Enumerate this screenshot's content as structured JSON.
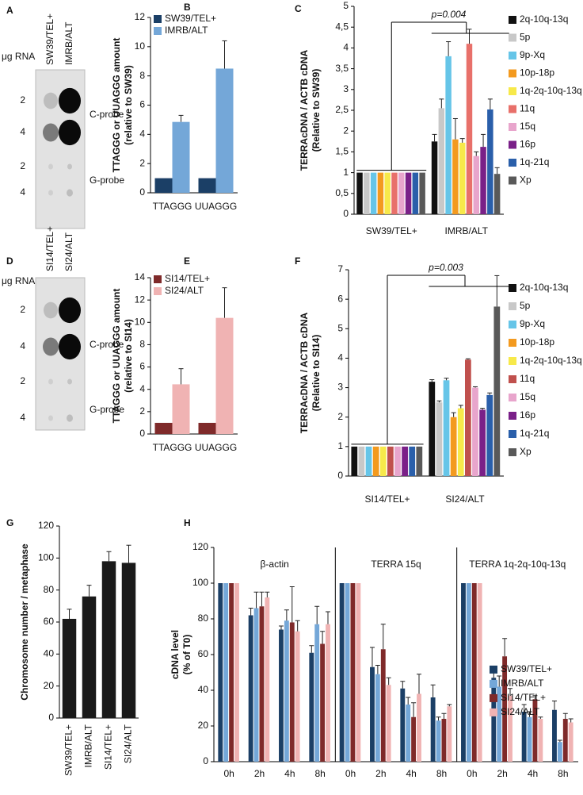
{
  "chart_data": [
    {
      "type": "blot",
      "label": "A",
      "lanes": [
        "SW39/TEL+",
        "IMRB/ALT"
      ],
      "amount_label": "μg RNA",
      "amounts": [
        2,
        4,
        2,
        4
      ],
      "probes": [
        "C-probe",
        "G-probe"
      ]
    },
    {
      "type": "bar",
      "label": "B",
      "ylabel": [
        "TTAGGG or UUAGGG amount",
        "(relative to SW39)"
      ],
      "categories": [
        "TTAGGG",
        "UUAGGG"
      ],
      "series": [
        {
          "name": "SW39/TEL+",
          "color": "#1b3f66",
          "values": [
            1,
            1
          ]
        },
        {
          "name": "IMRB/ALT",
          "color": "#74a7d8",
          "values": [
            4.85,
            8.5
          ],
          "errors": [
            0.45,
            1.9
          ]
        }
      ],
      "ylim": [
        0,
        12
      ],
      "yticks": [
        0,
        2,
        4,
        6,
        8,
        10,
        12
      ],
      "legend": "upper left"
    },
    {
      "type": "bar",
      "label": "C",
      "ylabel": [
        "TERRAcDNA / ACTB cDNA",
        "(Relative to SW39)"
      ],
      "categories": [
        "SW39/TEL+",
        "IMRB/ALT"
      ],
      "series": [
        {
          "name": "2q-10q-13q",
          "color": "#111111",
          "values": [
            1,
            1.75
          ],
          "errors": [
            null,
            0.17
          ]
        },
        {
          "name": "5p",
          "color": "#c8c8c8",
          "values": [
            1,
            2.55
          ],
          "errors": [
            null,
            0.22
          ]
        },
        {
          "name": "9p-Xq",
          "color": "#66c5e8",
          "values": [
            1,
            3.8
          ],
          "errors": [
            null,
            0.35
          ]
        },
        {
          "name": "10p-18p",
          "color": "#f39a1f",
          "values": [
            1,
            1.8
          ],
          "errors": [
            null,
            0.5
          ]
        },
        {
          "name": "1q-2q-10q-13q",
          "color": "#f7e94a",
          "values": [
            1,
            1.72
          ],
          "errors": [
            null,
            0.1
          ]
        },
        {
          "name": "11q",
          "color": "#e8706a",
          "values": [
            1,
            4.1
          ],
          "errors": [
            null,
            0.35
          ]
        },
        {
          "name": "15q",
          "color": "#e8a5cc",
          "values": [
            1,
            1.4
          ],
          "errors": [
            null,
            0.1
          ]
        },
        {
          "name": "16p",
          "color": "#7a2088",
          "values": [
            1,
            1.62
          ],
          "errors": [
            null,
            0.3
          ]
        },
        {
          "name": "1q-21q",
          "color": "#2a5faa",
          "values": [
            1,
            2.52
          ],
          "errors": [
            null,
            0.25
          ]
        },
        {
          "name": "Xp",
          "color": "#595959",
          "values": [
            1,
            0.97
          ],
          "errors": [
            null,
            0.15
          ]
        }
      ],
      "ylim": [
        0,
        5
      ],
      "yticks": [
        0,
        {
          "value": 0.5,
          "label": "0,5"
        },
        1,
        {
          "value": 1.5,
          "label": "1,5"
        },
        2,
        {
          "value": 2.5,
          "label": "2,5"
        },
        3,
        {
          "value": 3.5,
          "label": "3,5"
        },
        4,
        {
          "value": 4.5,
          "label": "4,5"
        },
        5
      ],
      "annotation": "p=0.004",
      "legend": "right"
    },
    {
      "type": "blot",
      "label": "D",
      "lanes": [
        "SI14/TEL+",
        "SI24/ALT"
      ],
      "amount_label": "μg RNA",
      "amounts": [
        2,
        4,
        2,
        4
      ],
      "probes": [
        "C-probe",
        "G-probe"
      ]
    },
    {
      "type": "bar",
      "label": "E",
      "ylabel": [
        "TTAGGG or UUAGGG amount",
        "(relative to SI14)"
      ],
      "categories": [
        "TTAGGG",
        "UUAGGG"
      ],
      "series": [
        {
          "name": "SI14/TEL+",
          "color": "#7f2a2a",
          "values": [
            1,
            1
          ]
        },
        {
          "name": "SI24/ALT",
          "color": "#f0b3b3",
          "values": [
            4.45,
            10.4
          ],
          "errors": [
            1.4,
            2.7
          ]
        }
      ],
      "ylim": [
        0,
        14
      ],
      "yticks": [
        0,
        2,
        4,
        6,
        8,
        10,
        12,
        14
      ],
      "legend": "upper left"
    },
    {
      "type": "bar",
      "label": "F",
      "ylabel": [
        "TERRAcDNA / ACTB cDNA",
        "(Relative to SI14)"
      ],
      "categories": [
        "SI14/TEL+",
        "SI24/ALT"
      ],
      "series": [
        {
          "name": "2q-10q-13q",
          "color": "#111111",
          "values": [
            1,
            3.2
          ],
          "errors": [
            null,
            0.07
          ]
        },
        {
          "name": "5p",
          "color": "#c8c8c8",
          "values": [
            1,
            2.5
          ],
          "errors": [
            null,
            0.05
          ]
        },
        {
          "name": "9p-Xq",
          "color": "#66c5e8",
          "values": [
            1,
            3.25
          ],
          "errors": [
            null,
            0.07
          ]
        },
        {
          "name": "10p-18p",
          "color": "#f39a1f",
          "values": [
            1,
            2.0
          ],
          "errors": [
            null,
            0.15
          ]
        },
        {
          "name": "1q-2q-10q-13q",
          "color": "#f7e94a",
          "values": [
            1,
            2.3
          ],
          "errors": [
            null,
            0.1
          ]
        },
        {
          "name": "11q",
          "color": "#c0504d",
          "values": [
            1,
            3.95
          ],
          "errors": [
            null,
            0.03
          ]
        },
        {
          "name": "15q",
          "color": "#e8a5cc",
          "values": [
            1,
            3.0
          ],
          "errors": [
            null,
            0.03
          ]
        },
        {
          "name": "16p",
          "color": "#7a2088",
          "values": [
            1,
            2.25
          ],
          "errors": [
            null,
            0.05
          ]
        },
        {
          "name": "1q-21q",
          "color": "#2a5faa",
          "values": [
            1,
            2.75
          ],
          "errors": [
            null,
            0.07
          ]
        },
        {
          "name": "Xp",
          "color": "#595959",
          "values": [
            1,
            5.75
          ],
          "errors": [
            null,
            1.05
          ]
        }
      ],
      "ylim": [
        0,
        7
      ],
      "yticks": [
        0,
        1,
        2,
        3,
        4,
        5,
        6,
        7
      ],
      "annotation": "p=0.003",
      "legend": "right"
    },
    {
      "type": "bar",
      "label": "G",
      "ylabel": [
        "Chromosome number / metaphase"
      ],
      "categories": [
        "SW39/TEL+",
        "IMRB/ALT",
        "SI14/TEL+",
        "SI24/ALT"
      ],
      "values": [
        62,
        76,
        98,
        97
      ],
      "errors": [
        6,
        7,
        6,
        11
      ],
      "color": "#1a1a1a",
      "ylim": [
        0,
        120
      ],
      "yticks": [
        0,
        20,
        40,
        60,
        80,
        100,
        120
      ]
    },
    {
      "type": "bar",
      "label": "H",
      "ylabel": [
        "cDNA level",
        "(% of T0)"
      ],
      "categories": [
        "0h",
        "2h",
        "4h",
        "8h"
      ],
      "series": [
        {
          "name": "SW39/TEL+",
          "color": "#1b3f66"
        },
        {
          "name": "IMRB/ALT",
          "color": "#74a7d8"
        },
        {
          "name": "SI14/TEL+",
          "color": "#7f2a2a"
        },
        {
          "name": "SI24/ALT",
          "color": "#f0b3b3"
        }
      ],
      "panels": [
        {
          "title": "β-actin",
          "values": [
            [
              100,
              82,
              74,
              61
            ],
            [
              100,
              86,
              79,
              77
            ],
            [
              100,
              87,
              78,
              66
            ],
            [
              100,
              92,
              73,
              77
            ]
          ],
          "errors": [
            [
              null,
              4,
              2,
              4
            ],
            [
              null,
              9,
              6,
              10
            ],
            [
              null,
              8,
              20,
              7
            ],
            [
              null,
              3,
              6,
              7
            ]
          ]
        },
        {
          "title": "TERRA 15q",
          "values": [
            [
              100,
              53,
              41,
              36
            ],
            [
              100,
              49,
              32,
              23
            ],
            [
              100,
              63,
              25,
              24
            ],
            [
              100,
              43,
              38,
              31
            ]
          ],
          "errors": [
            [
              null,
              11,
              4,
              7
            ],
            [
              null,
              5,
              4,
              2
            ],
            [
              null,
              14,
              8,
              3
            ],
            [
              null,
              4,
              11,
              1
            ]
          ]
        },
        {
          "title": "TERRA 1q-2q-10q-13q",
          "values": [
            [
              100,
              47,
              28,
              29
            ],
            [
              100,
              42,
              25,
              11
            ],
            [
              100,
              59,
              35,
              24
            ],
            [
              100,
              37,
              24,
              22
            ]
          ],
          "errors": [
            [
              null,
              3,
              4,
              5
            ],
            [
              null,
              6,
              3,
              1
            ],
            [
              null,
              10,
              2,
              3
            ],
            [
              null,
              4,
              1,
              2
            ]
          ]
        }
      ],
      "ylim": [
        0,
        120
      ],
      "yticks": [
        0,
        20,
        40,
        60,
        80,
        100,
        120
      ],
      "legend": "upper right"
    }
  ]
}
